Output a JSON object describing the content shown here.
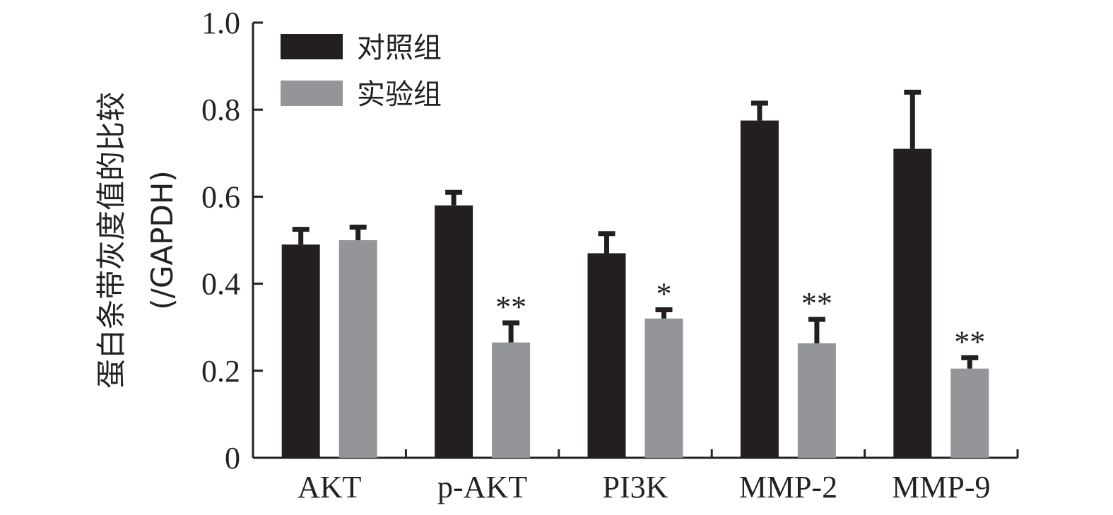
{
  "chart_data": {
    "type": "bar",
    "categories": [
      "AKT",
      "p-AKT",
      "PI3K",
      "MMP-2",
      "MMP-9"
    ],
    "series": [
      {
        "name": "对照组",
        "color": "#231f20",
        "values": [
          0.49,
          0.58,
          0.47,
          0.775,
          0.71
        ],
        "errors": [
          0.035,
          0.03,
          0.045,
          0.04,
          0.13
        ]
      },
      {
        "name": "实验组",
        "color": "#939598",
        "values": [
          0.5,
          0.265,
          0.32,
          0.263,
          0.205
        ],
        "errors": [
          0.03,
          0.045,
          0.02,
          0.055,
          0.025
        ]
      }
    ],
    "significance": [
      [
        "",
        "",
        "",
        "",
        ""
      ],
      [
        "",
        "**",
        "*",
        "**",
        "**"
      ]
    ],
    "ylabel_line1": "蛋白条带灰度值的比较",
    "ylabel_line2": "(/GAPDH)",
    "ylim": [
      0,
      1.0
    ],
    "yticks": [
      "0",
      "0.2",
      "0.4",
      "0.6",
      "0.8",
      "1.0"
    ],
    "ytick_values": [
      0,
      0.2,
      0.4,
      0.6,
      0.8,
      1.0
    ],
    "legend_position": "top-left",
    "grid": false
  }
}
